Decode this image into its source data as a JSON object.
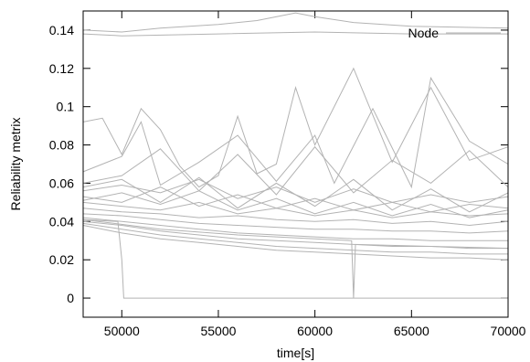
{
  "chart_data": {
    "type": "line",
    "title": "",
    "xlabel": "time[s]",
    "ylabel": "Reliability metrix",
    "xlim": [
      48000,
      70000
    ],
    "ylim": [
      -0.01,
      0.15
    ],
    "xticks": [
      50000,
      55000,
      60000,
      65000,
      70000
    ],
    "xtick_labels": [
      "50000",
      "55000",
      "60000",
      "65000",
      "70000"
    ],
    "yticks": [
      0,
      0.02,
      0.04,
      0.06,
      0.08,
      0.1,
      0.12,
      0.14
    ],
    "ytick_labels": [
      "0",
      "0.02",
      "0.04",
      "0.06",
      "0.08",
      "0.1",
      "0.12",
      "0.14"
    ],
    "legend": {
      "placement": "top-right",
      "entries": [
        "Node"
      ]
    },
    "line_color": "#b3b3b3",
    "grid": false,
    "series": [
      {
        "name": "Node",
        "x": [
          48000,
          50000,
          52000,
          55000,
          57000,
          59000,
          60000,
          62000,
          65000,
          70000
        ],
        "y": [
          0.14,
          0.139,
          0.141,
          0.143,
          0.145,
          0.149,
          0.147,
          0.144,
          0.142,
          0.141
        ]
      },
      {
        "x": [
          48000,
          50000,
          55000,
          60000,
          65000,
          70000
        ],
        "y": [
          0.138,
          0.137,
          0.138,
          0.139,
          0.138,
          0.138
        ]
      },
      {
        "x": [
          48000,
          49000,
          50000,
          51000,
          52000,
          53000,
          54000,
          55000,
          56000,
          57000,
          58000,
          59000,
          60000,
          62000,
          64000,
          66000,
          68000,
          70000
        ],
        "y": [
          0.092,
          0.094,
          0.075,
          0.099,
          0.088,
          0.069,
          0.058,
          0.064,
          0.095,
          0.065,
          0.07,
          0.11,
          0.08,
          0.12,
          0.071,
          0.11,
          0.072,
          0.079
        ]
      },
      {
        "x": [
          48000,
          50000,
          51000,
          52000,
          54000,
          56000,
          58000,
          60000,
          61000,
          63000,
          65000,
          66000,
          68000,
          70000
        ],
        "y": [
          0.066,
          0.074,
          0.092,
          0.059,
          0.071,
          0.085,
          0.061,
          0.085,
          0.06,
          0.099,
          0.058,
          0.115,
          0.082,
          0.07
        ]
      },
      {
        "x": [
          48000,
          50000,
          52000,
          54000,
          56000,
          58000,
          60000,
          62000,
          64000,
          66000,
          68000,
          70000
        ],
        "y": [
          0.06,
          0.064,
          0.078,
          0.056,
          0.075,
          0.054,
          0.079,
          0.055,
          0.072,
          0.06,
          0.077,
          0.058
        ]
      },
      {
        "x": [
          48000,
          50000,
          52000,
          54000,
          56000,
          58000,
          60000,
          62000,
          64000,
          66000,
          68000,
          70000
        ],
        "y": [
          0.056,
          0.059,
          0.055,
          0.062,
          0.052,
          0.058,
          0.05,
          0.057,
          0.05,
          0.054,
          0.05,
          0.053
        ]
      },
      {
        "x": [
          48000,
          50000,
          52000,
          54000,
          56000,
          58000,
          60000,
          62000,
          64000,
          66000,
          68000,
          70000
        ],
        "y": [
          0.053,
          0.05,
          0.058,
          0.048,
          0.054,
          0.047,
          0.052,
          0.046,
          0.05,
          0.045,
          0.049,
          0.047
        ]
      },
      {
        "x": [
          48000,
          50000,
          52000,
          54000,
          56000,
          58000,
          60000,
          62000,
          64000,
          66000,
          68000,
          70000
        ],
        "y": [
          0.05,
          0.048,
          0.046,
          0.05,
          0.044,
          0.047,
          0.043,
          0.046,
          0.042,
          0.045,
          0.043,
          0.044
        ]
      },
      {
        "x": [
          48000,
          50000,
          52000,
          54000,
          56000,
          58000,
          60000,
          62000,
          64000,
          66000,
          68000,
          70000
        ],
        "y": [
          0.047,
          0.045,
          0.044,
          0.042,
          0.043,
          0.041,
          0.04,
          0.041,
          0.039,
          0.04,
          0.038,
          0.04
        ]
      },
      {
        "x": [
          48000,
          50000,
          52000,
          54000,
          56000,
          58000,
          60000,
          62000,
          64000,
          66000,
          68000,
          70000
        ],
        "y": [
          0.044,
          0.043,
          0.041,
          0.039,
          0.038,
          0.037,
          0.036,
          0.036,
          0.035,
          0.035,
          0.034,
          0.035
        ]
      },
      {
        "x": [
          48000,
          50000,
          52000,
          54000,
          56000,
          58000,
          60000,
          62000,
          64000,
          66000,
          68000,
          70000
        ],
        "y": [
          0.042,
          0.04,
          0.038,
          0.036,
          0.034,
          0.033,
          0.032,
          0.031,
          0.031,
          0.03,
          0.03,
          0.03
        ]
      },
      {
        "x": [
          48000,
          50000,
          52000,
          54000,
          56000,
          58000,
          60000,
          62000,
          64000,
          66000,
          68000,
          70000
        ],
        "y": [
          0.04,
          0.038,
          0.035,
          0.033,
          0.031,
          0.03,
          0.029,
          0.028,
          0.027,
          0.027,
          0.026,
          0.026
        ]
      },
      {
        "x": [
          48000,
          50000,
          52000,
          54000,
          56000,
          58000,
          60000,
          62000,
          64000,
          66000,
          68000,
          70000
        ],
        "y": [
          0.039,
          0.036,
          0.033,
          0.031,
          0.029,
          0.027,
          0.026,
          0.025,
          0.024,
          0.024,
          0.023,
          0.023
        ]
      },
      {
        "x": [
          48000,
          50000,
          52000,
          54000,
          56000,
          58000,
          60000,
          62000,
          64000,
          66000,
          68000,
          70000
        ],
        "y": [
          0.038,
          0.034,
          0.031,
          0.029,
          0.027,
          0.025,
          0.024,
          0.023,
          0.022,
          0.021,
          0.021,
          0.02
        ]
      },
      {
        "x": [
          48000,
          50000,
          52000,
          54000,
          56000,
          58000,
          60000,
          62000,
          64000,
          66000,
          68000,
          70000
        ],
        "y": [
          0.058,
          0.062,
          0.05,
          0.063,
          0.047,
          0.06,
          0.048,
          0.062,
          0.046,
          0.057,
          0.045,
          0.055
        ]
      },
      {
        "x": [
          48000,
          50000,
          52000,
          54000,
          56000,
          58000,
          60000,
          62000,
          64000,
          66000,
          68000,
          70000
        ],
        "y": [
          0.051,
          0.055,
          0.049,
          0.056,
          0.046,
          0.052,
          0.044,
          0.05,
          0.043,
          0.049,
          0.042,
          0.046
        ]
      },
      {
        "x": [
          48000,
          49800,
          50000,
          50100,
          62000,
          62100,
          62200,
          70000
        ],
        "y": [
          0.041,
          0.04,
          0.02,
          0.0,
          0.0,
          0.0,
          0.0,
          0.0
        ]
      },
      {
        "x": [
          48000,
          52000,
          56000,
          60000,
          61900,
          62000,
          62100,
          66000,
          70000
        ],
        "y": [
          0.041,
          0.036,
          0.033,
          0.031,
          0.03,
          0.0,
          0.028,
          0.027,
          0.026
        ]
      }
    ]
  }
}
